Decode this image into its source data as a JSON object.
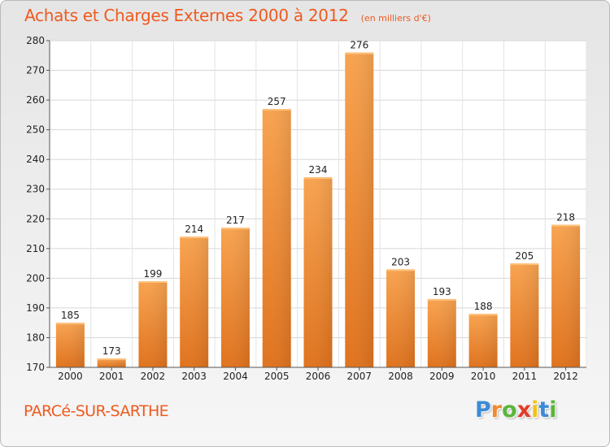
{
  "chart_data": {
    "type": "bar",
    "title": "Achats et Charges Externes 2000 à 2012",
    "unit_note": "(en milliers d'€)",
    "categories": [
      "2000",
      "2001",
      "2002",
      "2003",
      "2004",
      "2005",
      "2006",
      "2007",
      "2008",
      "2009",
      "2010",
      "2011",
      "2012"
    ],
    "values": [
      185,
      173,
      199,
      214,
      217,
      257,
      234,
      276,
      203,
      193,
      188,
      205,
      218
    ],
    "ylim": [
      170,
      280
    ],
    "yticks": [
      170,
      180,
      190,
      200,
      210,
      220,
      230,
      240,
      250,
      260,
      270,
      280
    ],
    "xlabel": "",
    "ylabel": "",
    "grid": true,
    "legend": "none",
    "bar_color": "#f0892f"
  },
  "footer": {
    "commune": "PARCé-SUR-SARTHE",
    "logo_letters": [
      "P",
      "r",
      "o",
      "x",
      "i",
      "t",
      "i"
    ],
    "logo_colors": [
      "#3d8ad6",
      "#f0892f",
      "#5bb53b",
      "#e23c2a",
      "#f3c21b",
      "#3d8ad6",
      "#5bb53b"
    ]
  },
  "colors": {
    "accent": "#ef5a1f"
  }
}
